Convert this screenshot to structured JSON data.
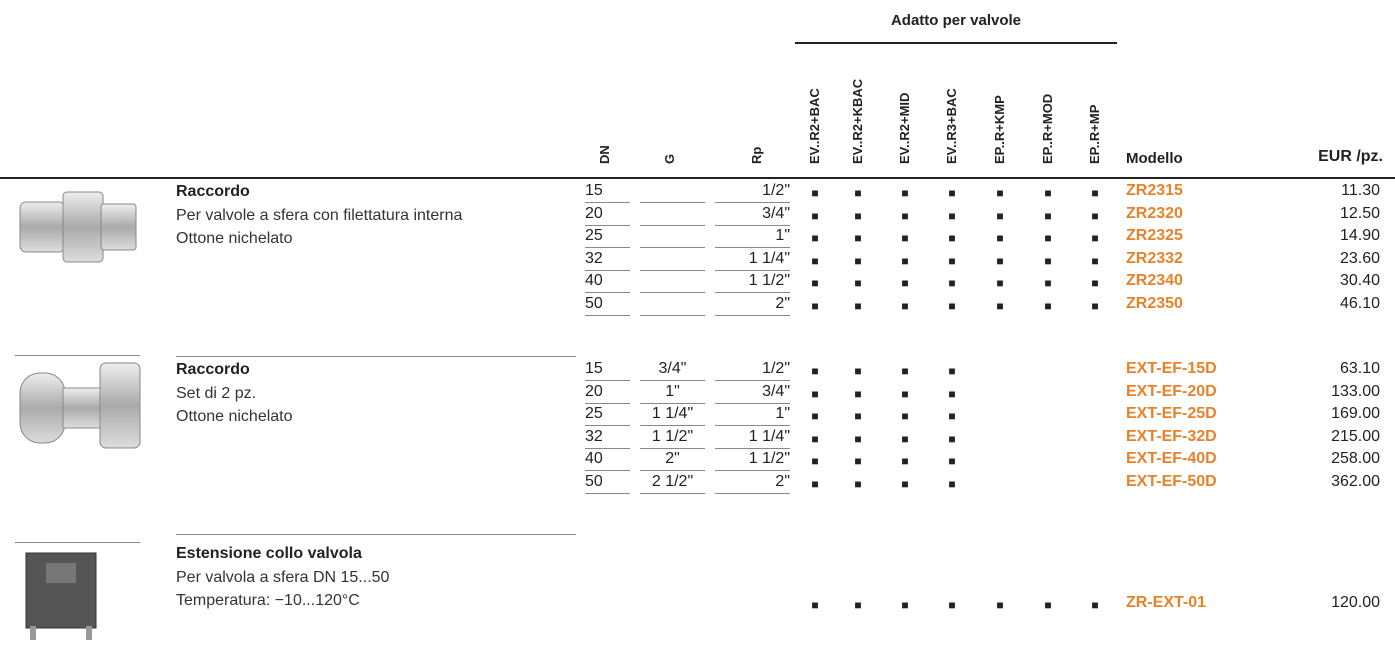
{
  "header": {
    "group_label": "Adatto per valvole",
    "columns": [
      "DN",
      "G",
      "Rp",
      "EV..R2+BAC",
      "EV..R2+KBAC",
      "EV..R2+MID",
      "EV..R3+BAC",
      "EP..R+KMP",
      "EP..R+MOD",
      "EP..R+MP",
      "Modello",
      "EUR /pz."
    ]
  },
  "products": [
    {
      "title": "Raccordo",
      "lines": [
        "Per valvole a sfera con filettatura interna",
        "Ottone nichelato"
      ],
      "rows": [
        {
          "cells": [
            "15",
            null,
            "1/2\"",
            "■",
            "■",
            "■",
            "■",
            "■",
            "■",
            "■"
          ],
          "model": "ZR2315",
          "price": "11.30"
        },
        {
          "cells": [
            "20",
            null,
            "3/4\"",
            "■",
            "■",
            "■",
            "■",
            "■",
            "■",
            "■"
          ],
          "model": "ZR2320",
          "price": "12.50"
        },
        {
          "cells": [
            "25",
            null,
            "1\"",
            "■",
            "■",
            "■",
            "■",
            "■",
            "■",
            "■"
          ],
          "model": "ZR2325",
          "price": "14.90"
        },
        {
          "cells": [
            "32",
            null,
            "1 1/4\"",
            "■",
            "■",
            "■",
            "■",
            "■",
            "■",
            "■"
          ],
          "model": "ZR2332",
          "price": "23.60"
        },
        {
          "cells": [
            "40",
            null,
            "1 1/2\"",
            "■",
            "■",
            "■",
            "■",
            "■",
            "■",
            "■"
          ],
          "model": "ZR2340",
          "price": "30.40"
        },
        {
          "cells": [
            "50",
            null,
            "2\"",
            "■",
            "■",
            "■",
            "■",
            "■",
            "■",
            "■"
          ],
          "model": "ZR2350",
          "price": "46.10"
        }
      ]
    },
    {
      "title": "Raccordo",
      "lines": [
        "Set di 2 pz.",
        "Ottone nichelato"
      ],
      "rows": [
        {
          "cells": [
            "15",
            "3/4\"",
            "1/2\"",
            "■",
            "■",
            "■",
            "■",
            null,
            null,
            null
          ],
          "model": "EXT-EF-15D",
          "price": "63.10"
        },
        {
          "cells": [
            "20",
            "1\"",
            "3/4\"",
            "■",
            "■",
            "■",
            "■",
            null,
            null,
            null
          ],
          "model": "EXT-EF-20D",
          "price": "133.00"
        },
        {
          "cells": [
            "25",
            "1 1/4\"",
            "1\"",
            "■",
            "■",
            "■",
            "■",
            null,
            null,
            null
          ],
          "model": "EXT-EF-25D",
          "price": "169.00"
        },
        {
          "cells": [
            "32",
            "1 1/2\"",
            "1 1/4\"",
            "■",
            "■",
            "■",
            "■",
            null,
            null,
            null
          ],
          "model": "EXT-EF-32D",
          "price": "215.00"
        },
        {
          "cells": [
            "40",
            "2\"",
            "1 1/2\"",
            "■",
            "■",
            "■",
            "■",
            null,
            null,
            null
          ],
          "model": "EXT-EF-40D",
          "price": "258.00"
        },
        {
          "cells": [
            "50",
            "2 1/2\"",
            "2\"",
            "■",
            "■",
            "■",
            "■",
            null,
            null,
            null
          ],
          "model": "EXT-EF-50D",
          "price": "362.00"
        }
      ]
    },
    {
      "title": "Estensione collo valvola",
      "lines": [
        "Per valvola a sfera DN 15...50",
        "Temperatura: −10...120°C"
      ],
      "rows": [
        {
          "cells": [
            null,
            null,
            null,
            "■",
            "■",
            "■",
            "■",
            "■",
            "■",
            "■"
          ],
          "model": "ZR-EXT-01",
          "price": "120.00"
        }
      ]
    }
  ]
}
